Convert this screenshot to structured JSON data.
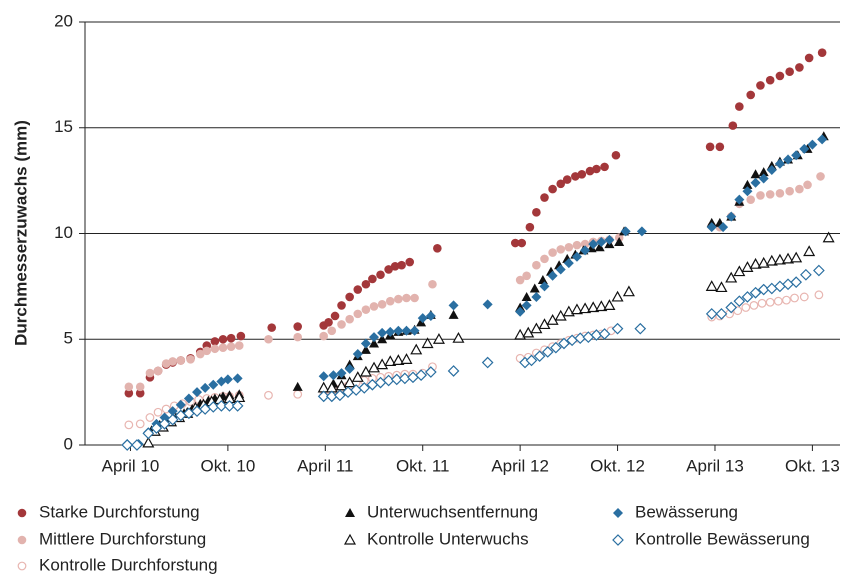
{
  "chart_data": {
    "type": "scatter",
    "y_label": "Durchmesserzuwachs (mm)",
    "ylim": [
      0,
      20
    ],
    "yticks": [
      0,
      5,
      10,
      15,
      20
    ],
    "xlim": [
      -2.8,
      43.7
    ],
    "xticks": [
      {
        "value": 0,
        "label": "April 10"
      },
      {
        "value": 6,
        "label": "Okt. 10"
      },
      {
        "value": 12,
        "label": "April 11"
      },
      {
        "value": 18,
        "label": "Okt. 11"
      },
      {
        "value": 24,
        "label": "April 12"
      },
      {
        "value": 30,
        "label": "Okt. 12"
      },
      {
        "value": 36,
        "label": "April 13"
      },
      {
        "value": 42,
        "label": "Okt. 13"
      }
    ],
    "grid": true,
    "series": [
      {
        "name": "Starke Durchforstung",
        "color": "#a3373a",
        "marker": "circle",
        "filled": true,
        "x": [
          -0.1,
          0.6,
          1.2,
          1.7,
          2.2,
          2.6,
          3.1,
          3.7,
          4.3,
          4.7,
          5.2,
          5.7,
          6.2,
          6.8,
          8.7,
          10.3,
          11.9,
          12.2,
          12.6,
          13.0,
          13.5,
          14.0,
          14.5,
          14.9,
          15.4,
          15.9,
          16.3,
          16.7,
          17.2,
          18.9,
          23.7,
          24.1,
          24.6,
          25.0,
          25.5,
          26.0,
          26.5,
          26.9,
          27.4,
          27.8,
          28.3,
          28.7,
          29.2,
          29.9,
          35.7,
          36.3,
          37.1,
          37.5,
          38.2,
          38.8,
          39.4,
          40.0,
          40.6,
          41.2,
          41.8,
          42.6
        ],
        "values": [
          2.45,
          2.45,
          3.2,
          3.5,
          3.8,
          3.9,
          4.0,
          4.1,
          4.4,
          4.7,
          4.9,
          5.0,
          5.05,
          5.15,
          5.55,
          5.6,
          5.65,
          5.8,
          6.1,
          6.6,
          7.0,
          7.35,
          7.6,
          7.85,
          8.05,
          8.3,
          8.45,
          8.5,
          8.65,
          9.3,
          9.55,
          9.55,
          10.3,
          11.0,
          11.7,
          12.1,
          12.35,
          12.55,
          12.7,
          12.8,
          12.95,
          13.05,
          13.15,
          13.7,
          14.1,
          14.1,
          15.1,
          16.0,
          16.55,
          17.0,
          17.25,
          17.45,
          17.65,
          17.85,
          18.3,
          18.55
        ]
      },
      {
        "name": "Mittlere Durchforstung",
        "color": "#e2b3ae",
        "marker": "circle",
        "filled": true,
        "x": [
          -0.1,
          0.6,
          1.2,
          1.7,
          2.2,
          2.6,
          3.1,
          3.7,
          4.3,
          4.7,
          5.2,
          5.7,
          6.2,
          6.7,
          8.5,
          10.3,
          11.9,
          12.4,
          13.0,
          13.5,
          14.0,
          14.5,
          15.0,
          15.5,
          16.0,
          16.5,
          17.0,
          17.5,
          18.6,
          24.0,
          24.4,
          25.0,
          25.5,
          26.0,
          26.5,
          27.0,
          27.5,
          28.0,
          28.5,
          29.0,
          29.5,
          30.1,
          35.8,
          36.3,
          37.0,
          37.5,
          38.2,
          38.8,
          39.4,
          40.0,
          40.6,
          41.2,
          41.7,
          42.5
        ],
        "values": [
          2.75,
          2.75,
          3.4,
          3.5,
          3.85,
          3.95,
          4.0,
          4.05,
          4.3,
          4.45,
          4.55,
          4.6,
          4.65,
          4.7,
          5.0,
          5.1,
          5.15,
          5.4,
          5.7,
          5.95,
          6.2,
          6.4,
          6.55,
          6.65,
          6.8,
          6.9,
          6.95,
          6.95,
          7.6,
          7.8,
          8.0,
          8.5,
          8.8,
          9.1,
          9.25,
          9.35,
          9.45,
          9.5,
          9.6,
          9.65,
          9.7,
          9.8,
          10.35,
          10.3,
          10.8,
          11.4,
          11.6,
          11.8,
          11.85,
          11.9,
          12.0,
          12.1,
          12.3,
          12.7
        ]
      },
      {
        "name": "Kontrolle Durchforstung",
        "color": "#e8b5b0",
        "marker": "circle",
        "filled": false,
        "x": [
          -0.1,
          0.6,
          1.2,
          1.7,
          2.2,
          2.7,
          3.2,
          3.7,
          4.2,
          4.7,
          5.2,
          5.7,
          6.1,
          6.7,
          8.5,
          10.3,
          11.9,
          12.4,
          12.9,
          13.4,
          13.9,
          14.4,
          14.9,
          15.4,
          15.9,
          16.4,
          16.9,
          17.4,
          18.0,
          18.6,
          24.0,
          24.5,
          25.0,
          25.5,
          26.0,
          26.5,
          27.0,
          27.5,
          28.0,
          28.5,
          29.0,
          29.6,
          35.8,
          36.3,
          36.9,
          37.4,
          37.9,
          38.4,
          38.9,
          39.4,
          39.9,
          40.4,
          40.9,
          41.5,
          42.4
        ],
        "values": [
          0.95,
          1.0,
          1.3,
          1.55,
          1.7,
          1.85,
          1.95,
          2.05,
          2.15,
          2.2,
          2.25,
          2.3,
          2.3,
          2.35,
          2.35,
          2.4,
          2.35,
          2.5,
          2.65,
          2.8,
          2.95,
          3.05,
          3.15,
          3.2,
          3.25,
          3.3,
          3.35,
          3.35,
          3.4,
          3.7,
          4.1,
          4.15,
          4.35,
          4.5,
          4.65,
          4.8,
          4.95,
          5.05,
          5.15,
          5.2,
          5.25,
          5.4,
          6.05,
          6.1,
          6.2,
          6.35,
          6.5,
          6.6,
          6.7,
          6.75,
          6.8,
          6.85,
          6.95,
          7.0,
          7.1
        ]
      },
      {
        "name": "Unterwuchsentfernung",
        "color": "#111111",
        "marker": "triangle",
        "filled": true,
        "x": [
          1.1,
          1.3,
          1.8,
          2.3,
          2.8,
          3.3,
          3.8,
          4.3,
          4.8,
          5.2,
          5.7,
          6.1,
          6.7,
          10.3,
          11.9,
          12.5,
          13.0,
          13.5,
          14.0,
          14.5,
          15.0,
          15.5,
          16.0,
          16.5,
          17.0,
          17.5,
          17.9,
          18.5,
          19.9,
          24.0,
          24.4,
          24.9,
          25.4,
          25.9,
          26.4,
          26.9,
          27.4,
          27.9,
          28.4,
          28.9,
          29.5,
          30.1,
          30.4,
          35.8,
          36.3,
          37.0,
          37.5,
          38.0,
          38.5,
          39.0,
          39.5,
          40.0,
          40.5,
          41.1,
          41.7,
          42.7
        ],
        "values": [
          0.1,
          0.7,
          0.95,
          1.1,
          1.3,
          1.5,
          1.7,
          1.95,
          2.1,
          2.2,
          2.3,
          2.35,
          2.4,
          2.75,
          2.75,
          2.9,
          3.3,
          3.8,
          4.2,
          4.5,
          4.8,
          5.0,
          5.2,
          5.35,
          5.4,
          5.45,
          5.8,
          6.15,
          6.15,
          6.5,
          7.0,
          7.4,
          7.8,
          8.2,
          8.5,
          8.8,
          9.0,
          9.2,
          9.3,
          9.35,
          9.5,
          9.6,
          10.1,
          10.5,
          10.5,
          10.8,
          11.5,
          12.3,
          12.8,
          12.9,
          13.2,
          13.4,
          13.5,
          13.7,
          14.0,
          14.6
        ]
      },
      {
        "name": "Kontrolle Unterwuchs",
        "color": "#111111",
        "marker": "triangle",
        "filled": false,
        "x": [
          1.1,
          1.5,
          2.0,
          2.5,
          3.0,
          3.5,
          4.0,
          4.5,
          5.0,
          5.5,
          6.1,
          6.7,
          11.9,
          12.4,
          13.0,
          13.5,
          14.0,
          14.5,
          15.0,
          15.5,
          16.0,
          16.5,
          17.0,
          17.6,
          18.3,
          19.0,
          20.2,
          24.0,
          24.5,
          25.0,
          25.5,
          26.0,
          26.5,
          27.0,
          27.5,
          28.0,
          28.5,
          29.0,
          29.5,
          30.0,
          30.7,
          35.8,
          36.4,
          37.0,
          37.5,
          38.0,
          38.5,
          39.0,
          39.5,
          40.0,
          40.5,
          41.0,
          41.8,
          43.0
        ],
        "values": [
          0.1,
          0.65,
          0.85,
          1.1,
          1.3,
          1.5,
          1.75,
          1.9,
          2.05,
          2.15,
          2.2,
          2.25,
          2.7,
          2.7,
          2.8,
          2.95,
          3.2,
          3.45,
          3.65,
          3.8,
          3.95,
          4.0,
          4.05,
          4.5,
          4.8,
          5.0,
          5.05,
          5.2,
          5.3,
          5.5,
          5.7,
          5.9,
          6.1,
          6.3,
          6.4,
          6.45,
          6.5,
          6.55,
          6.6,
          7.0,
          7.25,
          7.5,
          7.45,
          7.9,
          8.2,
          8.4,
          8.55,
          8.6,
          8.7,
          8.75,
          8.8,
          8.85,
          9.15,
          9.8
        ]
      },
      {
        "name": "Bewässerung",
        "color": "#2a6fa1",
        "marker": "diamond",
        "filled": true,
        "x": [
          -0.2,
          0.5,
          1.1,
          1.6,
          2.1,
          2.6,
          3.1,
          3.6,
          4.1,
          4.6,
          5.1,
          5.6,
          6.0,
          6.6,
          11.9,
          12.5,
          13.0,
          13.5,
          14.0,
          14.5,
          15.0,
          15.5,
          16.0,
          16.5,
          17.0,
          17.5,
          18.0,
          18.5,
          19.9,
          22.0,
          24.0,
          24.4,
          25.0,
          25.5,
          26.0,
          26.5,
          27.0,
          27.5,
          28.0,
          28.5,
          29.0,
          29.5,
          30.5,
          31.5,
          35.8,
          36.5,
          37.0,
          37.5,
          38.0,
          38.5,
          39.0,
          39.5,
          40.0,
          40.5,
          41.0,
          41.5,
          42.0,
          42.6
        ],
        "values": [
          0.05,
          0.05,
          0.6,
          1.0,
          1.3,
          1.6,
          1.9,
          2.2,
          2.5,
          2.7,
          2.85,
          3.0,
          3.1,
          3.15,
          3.25,
          3.3,
          3.4,
          3.6,
          4.3,
          4.8,
          5.1,
          5.3,
          5.35,
          5.4,
          5.4,
          5.4,
          6.0,
          6.1,
          6.6,
          6.65,
          6.3,
          6.6,
          7.0,
          7.5,
          8.0,
          8.3,
          8.6,
          8.9,
          9.2,
          9.5,
          9.6,
          9.7,
          10.1,
          10.1,
          10.3,
          10.3,
          10.8,
          11.6,
          12.0,
          12.4,
          12.6,
          13.0,
          13.3,
          13.5,
          13.7,
          14.0,
          14.2,
          14.45
        ]
      },
      {
        "name": "Kontrolle Bewässerung",
        "color": "#2a6fa1",
        "marker": "diamond",
        "filled": false,
        "x": [
          -0.2,
          0.4,
          1.1,
          1.6,
          2.1,
          2.6,
          3.1,
          3.6,
          4.1,
          4.6,
          5.1,
          5.6,
          6.1,
          6.6,
          11.9,
          12.4,
          12.9,
          13.4,
          13.9,
          14.4,
          14.9,
          15.4,
          15.9,
          16.4,
          16.9,
          17.4,
          17.9,
          18.5,
          19.9,
          22.0,
          24.3,
          24.7,
          25.2,
          25.7,
          26.2,
          26.7,
          27.2,
          27.7,
          28.2,
          28.7,
          29.2,
          30.0,
          31.4,
          35.8,
          36.4,
          37.0,
          37.5,
          38.0,
          38.5,
          39.0,
          39.5,
          40.0,
          40.5,
          41.0,
          41.6,
          42.4
        ],
        "values": [
          0.0,
          0.0,
          0.55,
          0.8,
          1.0,
          1.2,
          1.4,
          1.5,
          1.6,
          1.7,
          1.8,
          1.85,
          1.85,
          1.85,
          2.3,
          2.3,
          2.35,
          2.5,
          2.6,
          2.7,
          2.85,
          2.95,
          3.05,
          3.1,
          3.15,
          3.2,
          3.3,
          3.45,
          3.5,
          3.9,
          3.9,
          4.0,
          4.2,
          4.4,
          4.6,
          4.8,
          4.95,
          5.05,
          5.1,
          5.2,
          5.25,
          5.5,
          5.5,
          6.2,
          6.2,
          6.5,
          6.8,
          7.0,
          7.2,
          7.35,
          7.4,
          7.5,
          7.6,
          7.7,
          8.05,
          8.25
        ]
      }
    ]
  }
}
